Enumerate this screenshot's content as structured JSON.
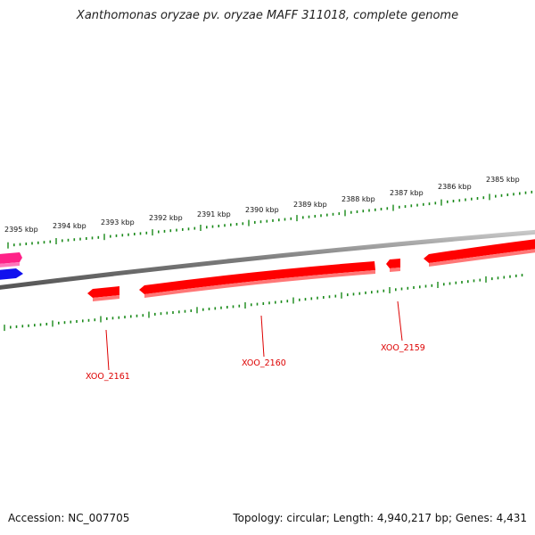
{
  "title": "Xanthomonas oryzae pv. oryzae MAFF 311018, complete genome",
  "footer": {
    "accession": "Accession: NC_007705",
    "summary": "Topology: circular; Length: 4,940,217 bp; Genes: 4,431"
  },
  "scale_labels": [
    "2395 kbp",
    "2394 kbp",
    "2393 kbp",
    "2392 kbp",
    "2391 kbp",
    "2390 kbp",
    "2389 kbp",
    "2388 kbp",
    "2387 kbp",
    "2386 kbp",
    "2385 kbp"
  ],
  "genes": [
    {
      "label": "XOO_2161"
    },
    {
      "label": "XOO_2160"
    },
    {
      "label": "XOO_2159"
    }
  ],
  "colors": {
    "forward_gene": "#ff0000",
    "genome_line": "#888888",
    "tick": "#1a8a1a",
    "label": "#dd0000",
    "other_pink": "#ff2288",
    "other_blue": "#1111ee"
  }
}
